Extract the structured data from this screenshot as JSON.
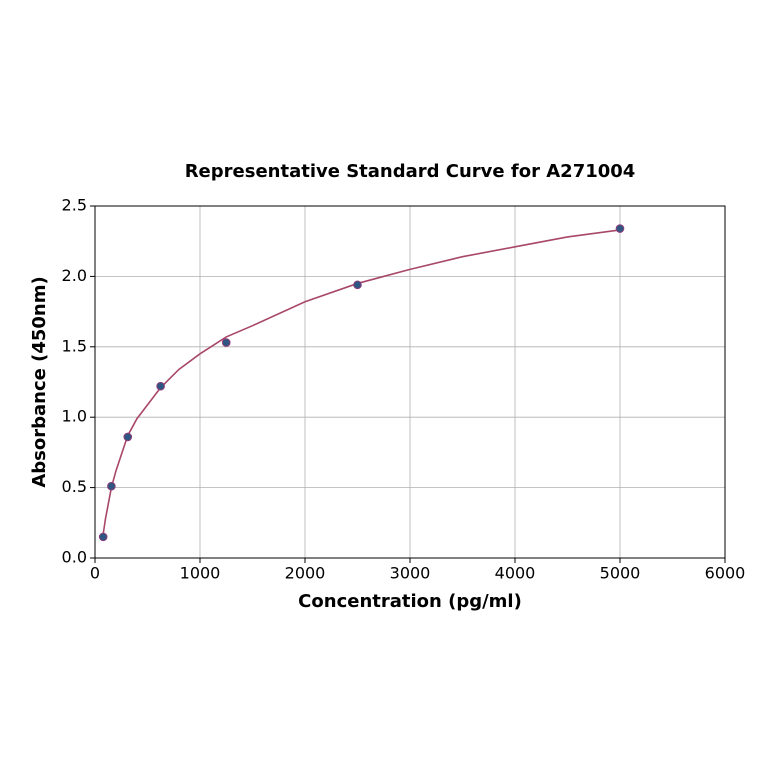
{
  "chart_data": {
    "type": "scatter",
    "title": "Representative Standard Curve for A271004",
    "x_label": "Concentration (pg/ml)",
    "y_label": "Absorbance (450nm)",
    "x": [
      78,
      156,
      312,
      625,
      1250,
      2500,
      5000
    ],
    "values": [
      0.15,
      0.51,
      0.86,
      1.22,
      1.53,
      1.94,
      2.34
    ],
    "color": "#2f5682",
    "edge_color": "#8a3d7a",
    "curve": {
      "x": [
        78,
        100,
        156,
        200,
        312,
        400,
        625,
        800,
        1000,
        1250,
        1500,
        2000,
        2500,
        3000,
        3500,
        4000,
        4500,
        5000
      ],
      "values": [
        0.17,
        0.28,
        0.5,
        0.62,
        0.87,
        0.99,
        1.21,
        1.34,
        1.45,
        1.57,
        1.65,
        1.82,
        1.95,
        2.05,
        2.14,
        2.21,
        2.28,
        2.33
      ],
      "color": "#a8476a"
    },
    "xlim": [
      0,
      6000
    ],
    "ylim": [
      0,
      2.5
    ],
    "xticks": [
      0,
      1000,
      2000,
      3000,
      4000,
      5000,
      6000
    ],
    "yticks": [
      {
        "value": 0,
        "label": "0.0"
      },
      {
        "value": 0.5,
        "label": "0.5"
      },
      {
        "value": 1,
        "label": "1.0"
      },
      {
        "value": 1.5,
        "label": "1.5"
      },
      {
        "value": 2,
        "label": "2.0"
      },
      {
        "value": 2.5,
        "label": "2.5"
      }
    ],
    "grid": true
  }
}
